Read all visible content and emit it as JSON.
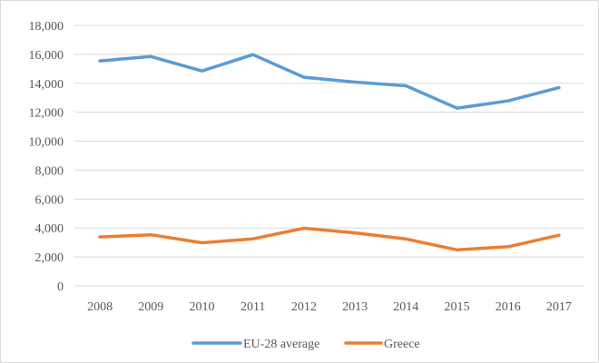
{
  "chart_data": {
    "type": "line",
    "title": "",
    "xlabel": "",
    "ylabel": "",
    "x": [
      2008,
      2009,
      2010,
      2011,
      2012,
      2013,
      2014,
      2015,
      2016,
      2017
    ],
    "x_tick_labels": [
      "2008",
      "2009",
      "2010",
      "2011",
      "2012",
      "2013",
      "2014",
      "2015",
      "2016",
      "2017"
    ],
    "ylim": [
      0,
      18000
    ],
    "y_ticks": [
      0,
      2000,
      4000,
      6000,
      8000,
      10000,
      12000,
      14000,
      16000,
      18000
    ],
    "y_tick_labels": [
      "0",
      "2,000",
      "4,000",
      "6,000",
      "8,000",
      "10,000",
      "12,000",
      "14,000",
      "16,000",
      "18,000"
    ],
    "grid": true,
    "legend_position": "bottom",
    "series": [
      {
        "name": "EU-28 average",
        "color": "#5b9bd5",
        "values": [
          15550,
          15850,
          14850,
          15980,
          14420,
          14080,
          13830,
          12280,
          12780,
          13700
        ]
      },
      {
        "name": "Greece",
        "color": "#ed7d31",
        "values": [
          3380,
          3530,
          2980,
          3250,
          3980,
          3660,
          3240,
          2490,
          2700,
          3500
        ]
      }
    ]
  }
}
